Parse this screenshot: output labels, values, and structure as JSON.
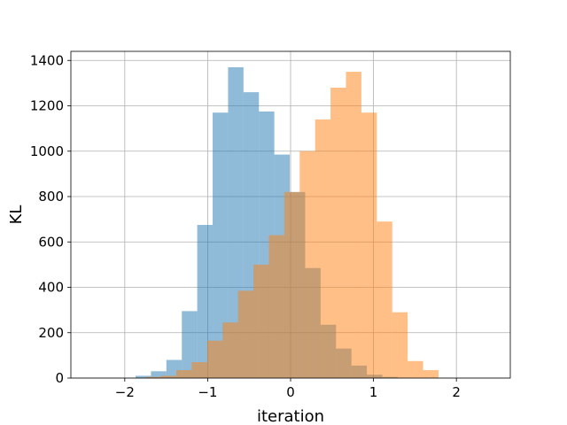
{
  "chart_data": {
    "type": "bar",
    "title": "",
    "xlabel": "iteration",
    "ylabel": "KL",
    "xlim": [
      -2.65,
      2.65
    ],
    "ylim": [
      0,
      1440
    ],
    "grid": true,
    "legend": "none",
    "x_ticks": [
      -2,
      -1,
      0,
      1,
      2
    ],
    "x_tick_labels": [
      "−2",
      "−1",
      "0",
      "1",
      "2"
    ],
    "y_ticks": [
      0,
      200,
      400,
      600,
      800,
      1000,
      1200,
      1400
    ],
    "y_tick_labels": [
      "0",
      "200",
      "400",
      "600",
      "800",
      "1000",
      "1200",
      "1400"
    ],
    "bin_width": 0.186,
    "series": [
      {
        "color": "#1f77b4",
        "opacity": 0.5,
        "bin_starts": [
          -1.87,
          -1.684,
          -1.498,
          -1.312,
          -1.126,
          -0.94,
          -0.754,
          -0.568,
          -0.382,
          -0.196,
          -0.01,
          0.176,
          0.362,
          0.548,
          0.734,
          0.92,
          1.106
        ],
        "values": [
          10,
          30,
          80,
          295,
          675,
          1170,
          1370,
          1260,
          1175,
          985,
          820,
          485,
          235,
          130,
          55,
          15,
          5
        ]
      },
      {
        "color": "#ff7f0e",
        "opacity": 0.5,
        "bin_starts": [
          -1.75,
          -1.564,
          -1.378,
          -1.192,
          -1.006,
          -0.82,
          -0.634,
          -0.448,
          -0.262,
          -0.076,
          0.11,
          0.296,
          0.482,
          0.668,
          0.854,
          1.04,
          1.226,
          1.412,
          1.598
        ],
        "values": [
          5,
          10,
          35,
          70,
          165,
          245,
          385,
          500,
          630,
          820,
          1000,
          1140,
          1280,
          1350,
          1170,
          690,
          290,
          75,
          35
        ]
      }
    ]
  }
}
